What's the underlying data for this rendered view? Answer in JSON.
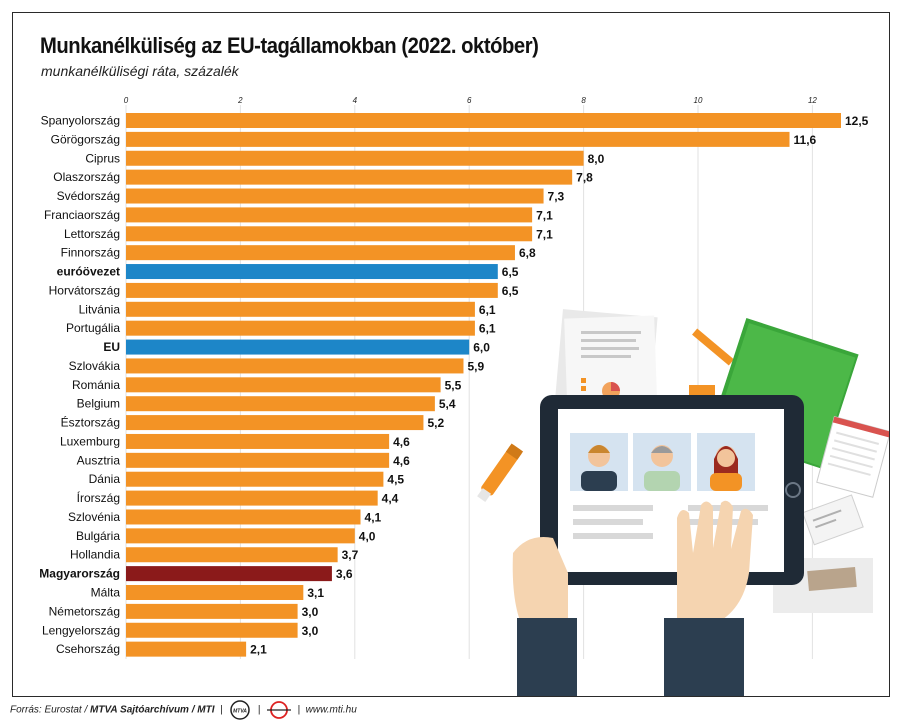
{
  "header": {
    "title": "Munkanélküliség az EU-tagállamokban (2022. október)",
    "subtitle": "munkanélküliségi ráta, százalék"
  },
  "footer": {
    "source_label": "Forrás: Eurostat /",
    "publisher": "MTVA Sajtóarchívum / MTI",
    "mtva_logo": "MTVA",
    "url": "www.mti.hu"
  },
  "colors": {
    "default": "#f39325",
    "eurozone_eu": "#1d86c8",
    "hungary": "#8b1a1a"
  },
  "chart_data": {
    "type": "bar",
    "orientation": "horizontal",
    "title": "Munkanélküliség az EU-tagállamokban (2022. október)",
    "subtitle": "munkanélküliségi ráta, százalék",
    "xlim": [
      0,
      12.5
    ],
    "ticks": [
      "0",
      "2",
      "4",
      "6",
      "8",
      "10",
      "12"
    ],
    "tick_values": [
      0,
      2,
      4,
      6,
      8,
      10,
      12
    ],
    "grid": true,
    "categories": [
      "Spanyolország",
      "Görögország",
      "Ciprus",
      "Olaszország",
      "Svédország",
      "Franciaország",
      "Lettország",
      "Finnország",
      "euróövezet",
      "Horvátország",
      "Litvánia",
      "Portugália",
      "EU",
      "Szlovákia",
      "Románia",
      "Belgium",
      "Észtország",
      "Luxemburg",
      "Ausztria",
      "Dánia",
      "Írország",
      "Szlovénia",
      "Bulgária",
      "Hollandia",
      "Magyarország",
      "Málta",
      "Németország",
      "Lengyelország",
      "Csehország"
    ],
    "values": [
      12.5,
      11.6,
      8.0,
      7.8,
      7.3,
      7.1,
      7.1,
      6.8,
      6.5,
      6.5,
      6.1,
      6.1,
      6.0,
      5.9,
      5.5,
      5.4,
      5.2,
      4.6,
      4.6,
      4.5,
      4.4,
      4.1,
      4.0,
      3.7,
      3.6,
      3.1,
      3.0,
      3.0,
      2.1
    ],
    "value_labels": [
      "12,5",
      "11,6",
      "8,0",
      "7,8",
      "7,3",
      "7,1",
      "7,1",
      "6,8",
      "6,5",
      "6,5",
      "6,1",
      "6,1",
      "6,0",
      "5,9",
      "5,5",
      "5,4",
      "5,2",
      "4,6",
      "4,6",
      "4,5",
      "4,4",
      "4,1",
      "4,0",
      "3,7",
      "3,6",
      "3,1",
      "3,0",
      "3,0",
      "2,1"
    ],
    "highlight": {
      "euróövezet": "eurozone_eu",
      "EU": "eurozone_eu",
      "Magyarország": "hungary"
    }
  }
}
